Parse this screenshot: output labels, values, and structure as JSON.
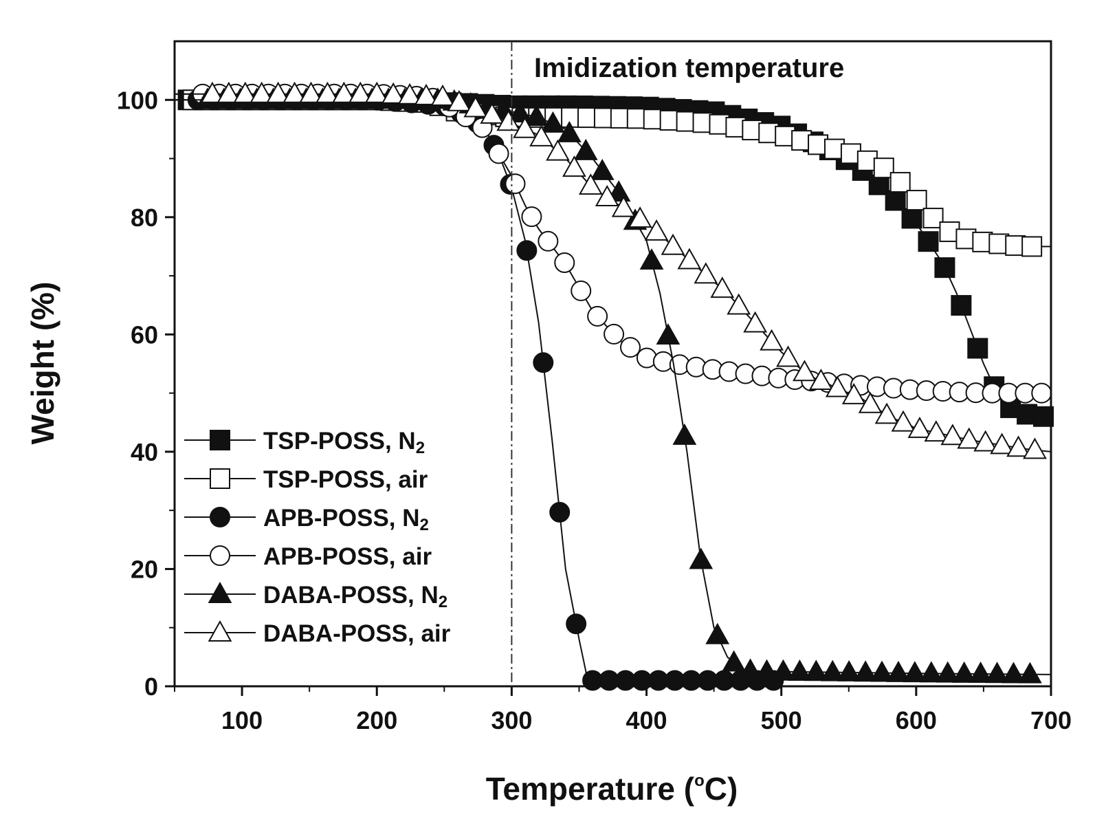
{
  "chart_data": {
    "type": "line",
    "title": "",
    "xlabel": "Temperature (°C)",
    "xlabel_parts": {
      "main": "Temperature (",
      "sup": "o",
      "unit": "C)"
    },
    "ylabel": "Weight (%)",
    "xlim": [
      50,
      700
    ],
    "ylim": [
      0,
      110
    ],
    "x_ticks": [
      100,
      200,
      300,
      400,
      500,
      600,
      700
    ],
    "y_ticks": [
      0,
      20,
      40,
      60,
      80,
      100
    ],
    "grid": false,
    "legend_position": "bottom-left",
    "annotation": {
      "text": "Imidization temperature",
      "x": 300,
      "style": "dash-dot vertical line"
    },
    "series": [
      {
        "name": "TSP-POSS, N2",
        "label_main": "TSP-POSS, N",
        "label_sub": "2",
        "marker": "square",
        "filled": true,
        "x": [
          50,
          100,
          200,
          250,
          300,
          350,
          400,
          450,
          500,
          540,
          560,
          580,
          600,
          610,
          620,
          630,
          640,
          650,
          660,
          670,
          680,
          690,
          700
        ],
        "y": [
          100,
          100,
          100,
          99.6,
          99,
          99,
          98.8,
          98,
          95.5,
          91,
          88,
          84,
          79,
          75.5,
          72,
          67,
          61,
          55,
          50,
          47.5,
          46.5,
          46,
          46
        ]
      },
      {
        "name": "TSP-POSS, air",
        "label_main": "TSP-POSS, air",
        "label_sub": "",
        "marker": "square",
        "filled": false,
        "x": [
          50,
          100,
          200,
          240,
          260,
          280,
          300,
          350,
          400,
          450,
          500,
          550,
          580,
          600,
          620,
          640,
          660,
          680,
          700
        ],
        "y": [
          100,
          100,
          100,
          99.5,
          98,
          97.5,
          97,
          97,
          96.8,
          96,
          94,
          91,
          88,
          83,
          78,
          76,
          75.5,
          75,
          75
        ]
      },
      {
        "name": "APB-POSS, N2",
        "label_main": "APB-POSS, N",
        "label_sub": "2",
        "marker": "circle",
        "filled": true,
        "x": [
          50,
          100,
          200,
          250,
          270,
          280,
          290,
          300,
          310,
          320,
          330,
          340,
          350,
          356,
          360,
          380,
          450,
          500
        ],
        "y": [
          100,
          100,
          100,
          99,
          97,
          95,
          91,
          85,
          76,
          62,
          42,
          20,
          8,
          1.5,
          1,
          1,
          1,
          1
        ]
      },
      {
        "name": "APB-POSS, air",
        "label_main": "APB-POSS, air",
        "label_sub": "",
        "marker": "circle",
        "filled": false,
        "x": [
          50,
          100,
          200,
          240,
          260,
          280,
          290,
          300,
          310,
          320,
          340,
          360,
          380,
          400,
          420,
          450,
          500,
          550,
          600,
          650,
          700
        ],
        "y": [
          101,
          101,
          101,
          100.5,
          98,
          95,
          91,
          87,
          82,
          78,
          72,
          64,
          59,
          56,
          55,
          54,
          52.5,
          51.5,
          50.5,
          50,
          50
        ]
      },
      {
        "name": "DABA-POSS, N2",
        "label_main": "DABA-POSS, N",
        "label_sub": "2",
        "marker": "triangle",
        "filled": true,
        "x": [
          50,
          100,
          200,
          250,
          300,
          320,
          340,
          360,
          380,
          400,
          410,
          420,
          430,
          440,
          450,
          460,
          470,
          480,
          500,
          600,
          700
        ],
        "y": [
          100,
          100,
          100,
          100,
          98,
          97,
          95,
          90,
          84,
          76,
          67,
          55,
          40,
          22,
          10,
          5,
          3,
          2.5,
          2.5,
          2.2,
          2
        ]
      },
      {
        "name": "DABA-POSS, air",
        "label_main": "DABA-POSS, air",
        "label_sub": "",
        "marker": "triangle",
        "filled": false,
        "x": [
          50,
          100,
          200,
          250,
          280,
          300,
          320,
          340,
          360,
          380,
          400,
          420,
          440,
          460,
          480,
          500,
          520,
          540,
          560,
          580,
          600,
          640,
          680,
          700
        ],
        "y": [
          101,
          101,
          101,
          100.5,
          98,
          96,
          94,
          90,
          85,
          82,
          79,
          75,
          71,
          67,
          62,
          57,
          53,
          51,
          49,
          46,
          44,
          42,
          40.5,
          40
        ]
      }
    ]
  }
}
